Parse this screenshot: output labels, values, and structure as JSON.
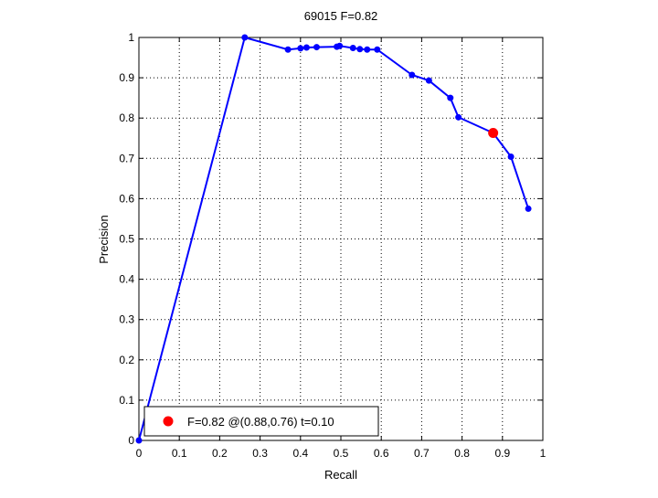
{
  "chart_data": {
    "type": "line",
    "title": "69015 F=0.82",
    "xlabel": "Recall",
    "ylabel": "Precision",
    "xlim": [
      0,
      1
    ],
    "ylim": [
      0,
      1
    ],
    "grid": true,
    "xticks": [
      "0",
      "0.1",
      "0.2",
      "0.3",
      "0.4",
      "0.5",
      "0.6",
      "0.7",
      "0.8",
      "0.9",
      "1"
    ],
    "yticks": [
      "0",
      "0.1",
      "0.2",
      "0.3",
      "0.4",
      "0.5",
      "0.6",
      "0.7",
      "0.8",
      "0.9",
      "1"
    ],
    "series": [
      {
        "color": "#0000ff",
        "x": [
          0.0,
          0.262,
          0.369,
          0.4,
          0.415,
          0.44,
          0.49,
          0.497,
          0.53,
          0.547,
          0.565,
          0.59,
          0.676,
          0.718,
          0.771,
          0.791,
          0.877,
          0.921,
          0.964
        ],
        "y": [
          0.0,
          1.0,
          0.97,
          0.973,
          0.975,
          0.976,
          0.977,
          0.979,
          0.974,
          0.971,
          0.97,
          0.97,
          0.907,
          0.893,
          0.85,
          0.802,
          0.763,
          0.704,
          0.575
        ]
      }
    ],
    "highlight": {
      "color": "#ff0000",
      "x": 0.877,
      "y": 0.763
    },
    "legend": {
      "position": "bottom-left",
      "label": "F=0.82 @(0.88,0.76) t=0.10"
    }
  }
}
